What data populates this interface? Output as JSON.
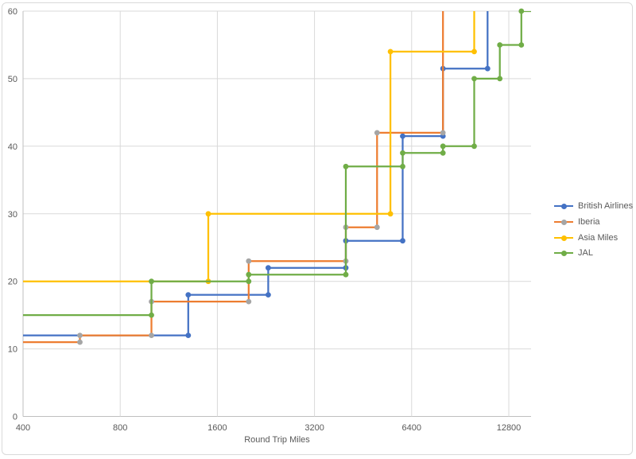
{
  "chart_data": {
    "type": "step-line",
    "xlabel": "Round Trip Miles",
    "x_scale": "log2",
    "xlim": [
      400,
      15000
    ],
    "ylim": [
      0,
      60
    ],
    "x_ticks": [
      400,
      800,
      1600,
      3200,
      6400,
      12800
    ],
    "y_ticks": [
      0,
      10,
      20,
      30,
      40,
      50,
      60
    ],
    "grid": true,
    "legend_position": "right",
    "grid_color": "#D9D9D9",
    "axis_color": "#BFBFBF",
    "text_color": "#595959",
    "series": [
      {
        "name": "British Airlines",
        "line_color": "#4472C4",
        "marker_color": "#4472C4",
        "exits_top": true,
        "points": [
          [
            400,
            12
          ],
          [
            1300,
            12
          ],
          [
            1300,
            18
          ],
          [
            2300,
            18
          ],
          [
            2300,
            22
          ],
          [
            4000,
            22
          ],
          [
            4000,
            26
          ],
          [
            6000,
            26
          ],
          [
            6000,
            41.5
          ],
          [
            8000,
            41.5
          ],
          [
            8000,
            51.5
          ],
          [
            11000,
            51.5
          ]
        ]
      },
      {
        "name": "Iberia",
        "line_color": "#ED7D31",
        "marker_color": "#A5A5A5",
        "exits_top": true,
        "points": [
          [
            400,
            11
          ],
          [
            600,
            11
          ],
          [
            600,
            12
          ],
          [
            1000,
            12
          ],
          [
            1000,
            17
          ],
          [
            2000,
            17
          ],
          [
            2000,
            23
          ],
          [
            4000,
            23
          ],
          [
            4000,
            28
          ],
          [
            5000,
            28
          ],
          [
            5000,
            42
          ],
          [
            8000,
            42
          ]
        ]
      },
      {
        "name": "Asia Miles",
        "line_color": "#FFC000",
        "marker_color": "#FFC000",
        "exits_top": true,
        "points": [
          [
            400,
            20
          ],
          [
            1500,
            20
          ],
          [
            1500,
            30
          ],
          [
            5500,
            30
          ],
          [
            5500,
            54
          ],
          [
            10000,
            54
          ]
        ]
      },
      {
        "name": "JAL",
        "line_color": "#70AD47",
        "marker_color": "#70AD47",
        "exits_top": false,
        "points": [
          [
            400,
            15
          ],
          [
            1000,
            15
          ],
          [
            1000,
            20
          ],
          [
            2000,
            20
          ],
          [
            2000,
            21
          ],
          [
            4000,
            21
          ],
          [
            4000,
            37
          ],
          [
            6000,
            37
          ],
          [
            6000,
            39
          ],
          [
            8000,
            39
          ],
          [
            8000,
            40
          ],
          [
            10000,
            40
          ],
          [
            10000,
            50
          ],
          [
            12000,
            50
          ],
          [
            12000,
            55
          ],
          [
            14000,
            55
          ],
          [
            14000,
            60
          ],
          [
            15000,
            60
          ]
        ]
      }
    ]
  }
}
